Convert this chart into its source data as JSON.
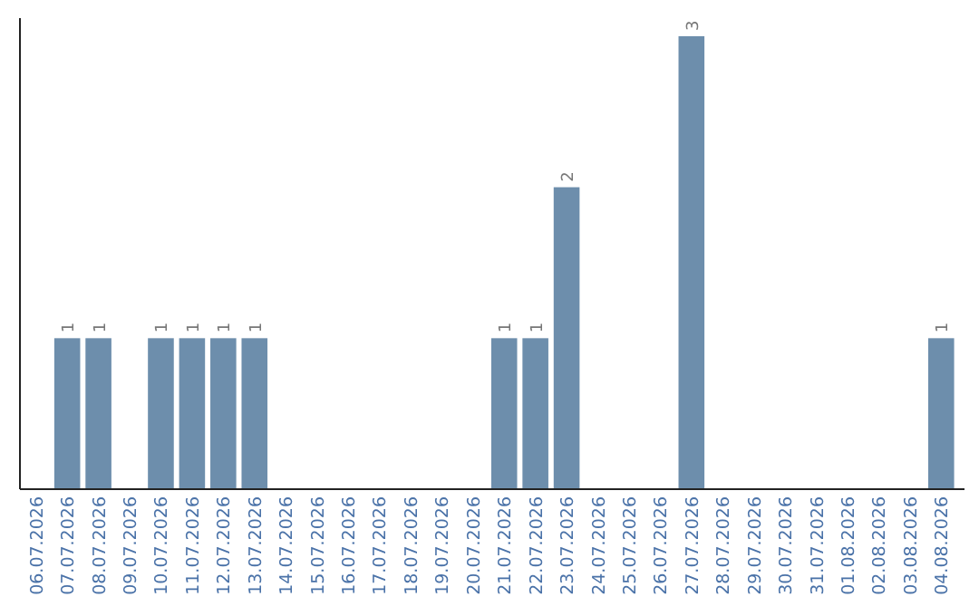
{
  "chart_data": {
    "type": "bar",
    "categories": [
      "06.07.2026",
      "07.07.2026",
      "08.07.2026",
      "09.07.2026",
      "10.07.2026",
      "11.07.2026",
      "12.07.2026",
      "13.07.2026",
      "14.07.2026",
      "15.07.2026",
      "16.07.2026",
      "17.07.2026",
      "18.07.2026",
      "19.07.2026",
      "20.07.2026",
      "21.07.2026",
      "22.07.2026",
      "23.07.2026",
      "24.07.2026",
      "25.07.2026",
      "26.07.2026",
      "27.07.2026",
      "28.07.2026",
      "29.07.2026",
      "30.07.2026",
      "31.07.2026",
      "01.08.2026",
      "02.08.2026",
      "03.08.2026",
      "04.08.2026"
    ],
    "values": [
      0,
      1,
      1,
      0,
      1,
      1,
      1,
      1,
      0,
      0,
      0,
      0,
      0,
      0,
      0,
      1,
      1,
      2,
      0,
      0,
      0,
      3,
      0,
      0,
      0,
      0,
      0,
      0,
      0,
      1
    ],
    "value_labels": [
      null,
      "1",
      "1",
      null,
      "1",
      "1",
      "1",
      "1",
      null,
      null,
      null,
      null,
      null,
      null,
      null,
      "1",
      "1",
      "2",
      null,
      null,
      null,
      "3",
      null,
      null,
      null,
      null,
      null,
      null,
      null,
      "1"
    ],
    "color": "#6d8eac"
  }
}
